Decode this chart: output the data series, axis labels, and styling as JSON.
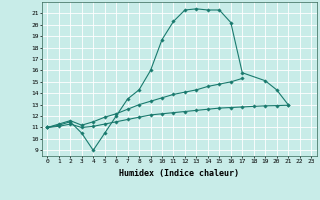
{
  "xlabel": "Humidex (Indice chaleur)",
  "background_color": "#c8ece8",
  "grid_color": "#ffffff",
  "line_color": "#1a7a6e",
  "xlim": [
    -0.5,
    23.5
  ],
  "ylim": [
    8.5,
    22
  ],
  "xticks": [
    0,
    1,
    2,
    3,
    4,
    5,
    6,
    7,
    8,
    9,
    10,
    11,
    12,
    13,
    14,
    15,
    16,
    17,
    18,
    19,
    20,
    21,
    22,
    23
  ],
  "yticks": [
    9,
    10,
    11,
    12,
    13,
    14,
    15,
    16,
    17,
    18,
    19,
    20,
    21
  ],
  "series1_y": [
    11,
    11.2,
    11.5,
    10.5,
    9.0,
    10.5,
    12.0,
    13.5,
    14.3,
    16.0,
    18.7,
    20.3,
    21.3,
    21.4,
    21.3,
    21.3,
    20.2,
    15.8,
    null,
    15.1,
    14.3,
    13.0,
    null,
    null
  ],
  "series2_y": [
    11,
    11.3,
    11.6,
    11.2,
    11.5,
    11.9,
    12.2,
    12.6,
    13.0,
    13.3,
    13.6,
    13.9,
    14.1,
    14.3,
    14.6,
    14.8,
    15.0,
    15.3,
    null,
    null,
    null,
    null,
    null,
    null
  ],
  "series3_y": [
    11,
    11.1,
    11.3,
    11.0,
    11.1,
    11.3,
    11.5,
    11.7,
    11.9,
    12.1,
    12.2,
    12.3,
    12.4,
    12.5,
    12.6,
    12.7,
    12.75,
    12.8,
    12.85,
    12.9,
    12.92,
    12.95,
    null,
    null
  ]
}
